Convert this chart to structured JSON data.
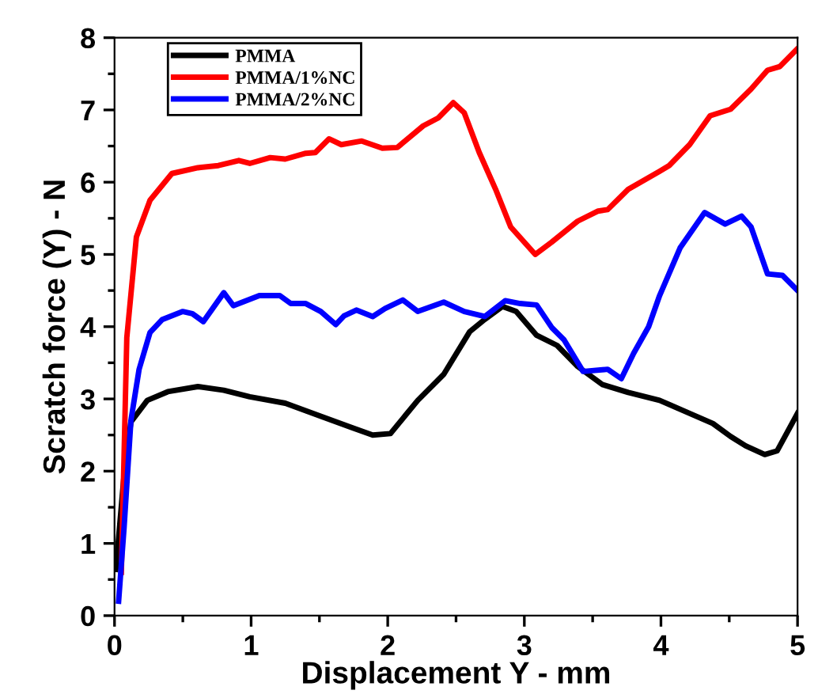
{
  "chart_data": {
    "type": "line",
    "xlabel": "Displacement Y - mm",
    "ylabel": "Scratch force (Y) - N",
    "xlim": [
      0,
      5
    ],
    "ylim": [
      0,
      8
    ],
    "xticks": [
      0,
      {
        "value": 0.5,
        "label": null
      },
      1,
      {
        "value": 1.5,
        "label": null
      },
      2,
      {
        "value": 2.5,
        "label": null
      },
      3,
      {
        "value": 3.5,
        "label": null
      },
      4,
      {
        "value": 4.5,
        "label": null
      },
      5
    ],
    "yticks": [
      0,
      {
        "value": 0.5,
        "label": null
      },
      1,
      {
        "value": 1.5,
        "label": null
      },
      2,
      {
        "value": 2.5,
        "label": null
      },
      3,
      {
        "value": 3.5,
        "label": null
      },
      4,
      {
        "value": 4.5,
        "label": null
      },
      5,
      {
        "value": 5.5,
        "label": null
      },
      6,
      {
        "value": 6.5,
        "label": null
      },
      7,
      {
        "value": 7.5,
        "label": null
      },
      8
    ],
    "grid": false,
    "legend": "top left",
    "marker": "none",
    "line_style": "solid",
    "series": [
      {
        "name": "PMMA",
        "color": "#000000",
        "x": [
          0.01,
          0.07,
          0.12,
          0.24,
          0.39,
          0.61,
          0.8,
          0.99,
          1.25,
          1.51,
          1.74,
          1.89,
          2.02,
          2.22,
          2.41,
          2.6,
          2.71,
          2.84,
          2.94,
          3.09,
          3.24,
          3.39,
          3.57,
          3.76,
          3.99,
          4.21,
          4.38,
          4.51,
          4.62,
          4.76,
          4.85,
          5.0
        ],
        "values": [
          0.64,
          1.95,
          2.68,
          2.98,
          3.1,
          3.17,
          3.12,
          3.03,
          2.94,
          2.76,
          2.6,
          2.5,
          2.52,
          2.98,
          3.34,
          3.93,
          4.1,
          4.28,
          4.21,
          3.88,
          3.74,
          3.45,
          3.2,
          3.09,
          2.98,
          2.8,
          2.66,
          2.48,
          2.35,
          2.23,
          2.28,
          2.8
        ]
      },
      {
        "name": "PMMA/1%NC",
        "color": "#ff0000",
        "x": [
          0.05,
          0.09,
          0.16,
          0.26,
          0.42,
          0.61,
          0.76,
          0.91,
          0.99,
          1.14,
          1.25,
          1.4,
          1.47,
          1.57,
          1.66,
          1.81,
          1.96,
          2.07,
          2.26,
          2.37,
          2.48,
          2.56,
          2.67,
          2.79,
          2.9,
          3.08,
          3.2,
          3.39,
          3.54,
          3.61,
          3.76,
          3.99,
          4.06,
          4.21,
          4.36,
          4.51,
          4.66,
          4.78,
          4.87,
          5.0
        ],
        "values": [
          0.6,
          3.85,
          5.24,
          5.75,
          6.12,
          6.2,
          6.23,
          6.3,
          6.26,
          6.34,
          6.32,
          6.4,
          6.41,
          6.6,
          6.52,
          6.57,
          6.47,
          6.48,
          6.78,
          6.89,
          7.1,
          6.96,
          6.41,
          5.9,
          5.38,
          5.0,
          5.17,
          5.46,
          5.6,
          5.62,
          5.9,
          6.15,
          6.23,
          6.52,
          6.92,
          7.01,
          7.29,
          7.55,
          7.6,
          7.85
        ]
      },
      {
        "name": "PMMA/2%NC",
        "color": "#0000ff",
        "x": [
          0.03,
          0.07,
          0.12,
          0.18,
          0.26,
          0.35,
          0.5,
          0.57,
          0.65,
          0.8,
          0.87,
          1.06,
          1.21,
          1.29,
          1.4,
          1.51,
          1.62,
          1.68,
          1.77,
          1.89,
          1.98,
          2.11,
          2.22,
          2.41,
          2.56,
          2.71,
          2.86,
          2.97,
          3.09,
          3.2,
          3.29,
          3.43,
          3.61,
          3.71,
          3.8,
          3.91,
          3.99,
          4.14,
          4.32,
          4.47,
          4.59,
          4.66,
          4.78,
          4.89,
          5.0
        ],
        "values": [
          0.2,
          1.22,
          2.7,
          3.41,
          3.92,
          4.1,
          4.21,
          4.18,
          4.07,
          4.47,
          4.29,
          4.43,
          4.43,
          4.32,
          4.32,
          4.21,
          4.03,
          4.15,
          4.23,
          4.14,
          4.25,
          4.37,
          4.21,
          4.34,
          4.21,
          4.14,
          4.36,
          4.32,
          4.3,
          3.99,
          3.82,
          3.38,
          3.41,
          3.28,
          3.63,
          4.0,
          4.43,
          5.09,
          5.58,
          5.42,
          5.53,
          5.38,
          4.73,
          4.71,
          4.5
        ]
      }
    ]
  }
}
